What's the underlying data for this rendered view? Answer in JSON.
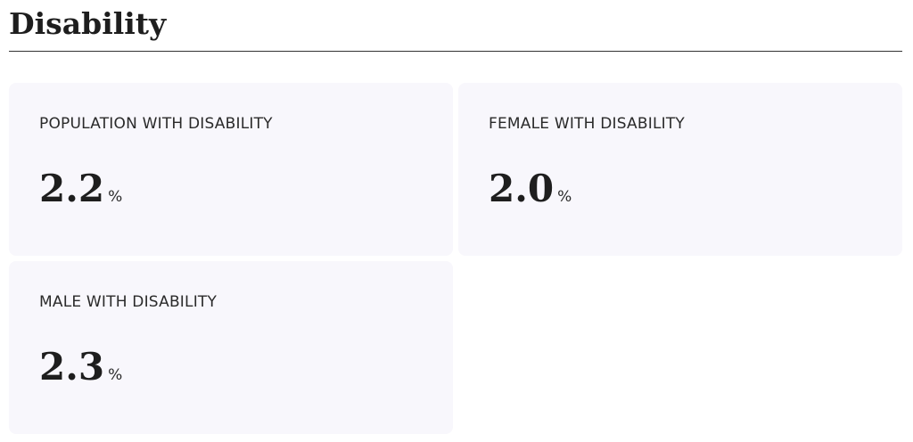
{
  "header": {
    "title": "Disability"
  },
  "cards": [
    {
      "label": "POPULATION WITH DISABILITY",
      "value": "2.2",
      "unit": "%"
    },
    {
      "label": "FEMALE WITH DISABILITY",
      "value": "2.0",
      "unit": "%"
    },
    {
      "label": "MALE WITH DISABILITY",
      "value": "2.3",
      "unit": "%"
    }
  ]
}
